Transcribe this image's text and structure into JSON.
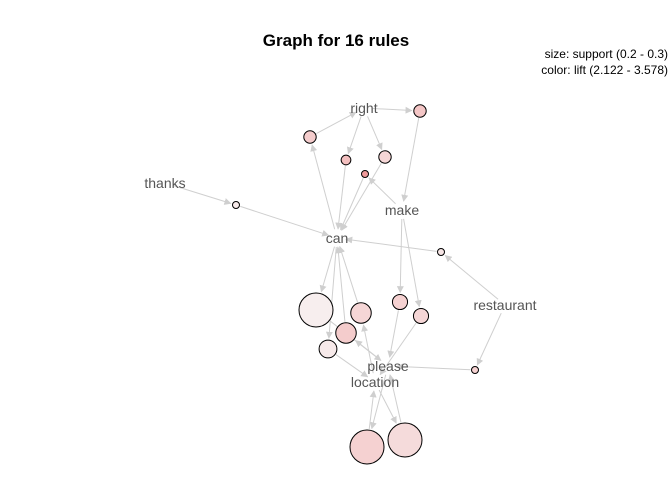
{
  "title": "Graph for 16 rules",
  "legend": {
    "size_text": "size: support (0.2 - 0.3)",
    "color_text": "color: lift (2.122 - 3.578)"
  },
  "colors": {
    "edge": "#cfcfcf",
    "label": "#555555",
    "node_stroke": "#000000",
    "lift_low": "#f7eeee",
    "lift_mid": "#f4c9c9",
    "lift_high": "#ef9a9a"
  },
  "items": [
    {
      "id": "right",
      "label": "right"
    },
    {
      "id": "thanks",
      "label": "thanks"
    },
    {
      "id": "make",
      "label": "make"
    },
    {
      "id": "can",
      "label": "can"
    },
    {
      "id": "restaurant",
      "label": "restaurant"
    },
    {
      "id": "please",
      "label": "please"
    },
    {
      "id": "location",
      "label": "location"
    }
  ],
  "rules": [
    {
      "id": "r1",
      "lhs": [
        "right"
      ],
      "rhs": "make",
      "support": 0.22,
      "lift": 2.9
    },
    {
      "id": "r2",
      "lhs": [
        "can"
      ],
      "rhs": "right",
      "support": 0.22,
      "lift": 2.8
    },
    {
      "id": "r3",
      "lhs": [
        "right"
      ],
      "rhs": "can",
      "support": 0.21,
      "lift": 3.0
    },
    {
      "id": "r4",
      "lhs": [
        "make"
      ],
      "rhs": "can",
      "support": 0.2,
      "lift": 3.578
    },
    {
      "id": "r5",
      "lhs": [
        "right"
      ],
      "rhs": "can",
      "support": 0.22,
      "lift": 2.6
    },
    {
      "id": "r6",
      "lhs": [
        "thanks"
      ],
      "rhs": "can",
      "support": 0.2,
      "lift": 2.2
    },
    {
      "id": "r7",
      "lhs": [
        "restaurant"
      ],
      "rhs": "can",
      "support": 0.2,
      "lift": 2.3
    },
    {
      "id": "r8",
      "lhs": [
        "can"
      ],
      "rhs": "please",
      "support": 0.3,
      "lift": 2.122
    },
    {
      "id": "r9",
      "lhs": [
        "location"
      ],
      "rhs": "can",
      "support": 0.25,
      "lift": 2.6
    },
    {
      "id": "r10",
      "lhs": [
        "make"
      ],
      "rhs": "please",
      "support": 0.23,
      "lift": 2.7
    },
    {
      "id": "r11",
      "lhs": [
        "please"
      ],
      "rhs": "can",
      "support": 0.25,
      "lift": 2.8
    },
    {
      "id": "r12",
      "lhs": [
        "make"
      ],
      "rhs": "location",
      "support": 0.23,
      "lift": 2.6
    },
    {
      "id": "r13",
      "lhs": [
        "can"
      ],
      "rhs": "location",
      "support": 0.24,
      "lift": 2.2
    },
    {
      "id": "r14",
      "lhs": [
        "restaurant"
      ],
      "rhs": "please",
      "support": 0.2,
      "lift": 2.7
    },
    {
      "id": "r15",
      "lhs": [
        "please"
      ],
      "rhs": "location",
      "support": 0.3,
      "lift": 2.7
    },
    {
      "id": "r16",
      "lhs": [
        "location"
      ],
      "rhs": "please",
      "support": 0.3,
      "lift": 2.5
    }
  ]
}
